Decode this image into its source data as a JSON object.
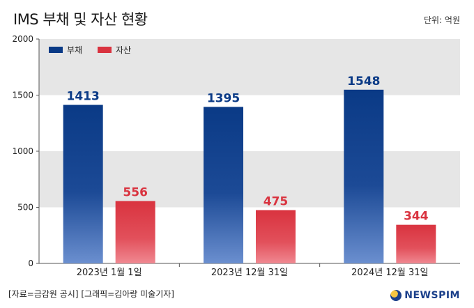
{
  "title": "IMS 부채 및 자산 현황",
  "unit": "단위: 억원",
  "source": "[자료=금감원 공시] [그래픽=김아랑 미술기자]",
  "logo": "NEWSPIM",
  "colors": {
    "debt_top": "#0a3a86",
    "debt_bottom": "#6b8fcf",
    "asset_top": "#d9333f",
    "asset_bottom": "#f08891",
    "band": "#e6e6e6"
  },
  "chart_data": {
    "type": "bar",
    "categories": [
      "2023년 1월 1일",
      "2023년 12월 31일",
      "2024년 12월 31일"
    ],
    "series": [
      {
        "name": "부채",
        "values": [
          1413,
          1395,
          1548
        ]
      },
      {
        "name": "자산",
        "values": [
          556,
          475,
          344
        ]
      }
    ],
    "ylim": [
      0,
      2000
    ],
    "yticks": [
      0,
      500,
      1000,
      1500,
      2000
    ],
    "legend": "top-left",
    "grid": "alternating bands"
  }
}
